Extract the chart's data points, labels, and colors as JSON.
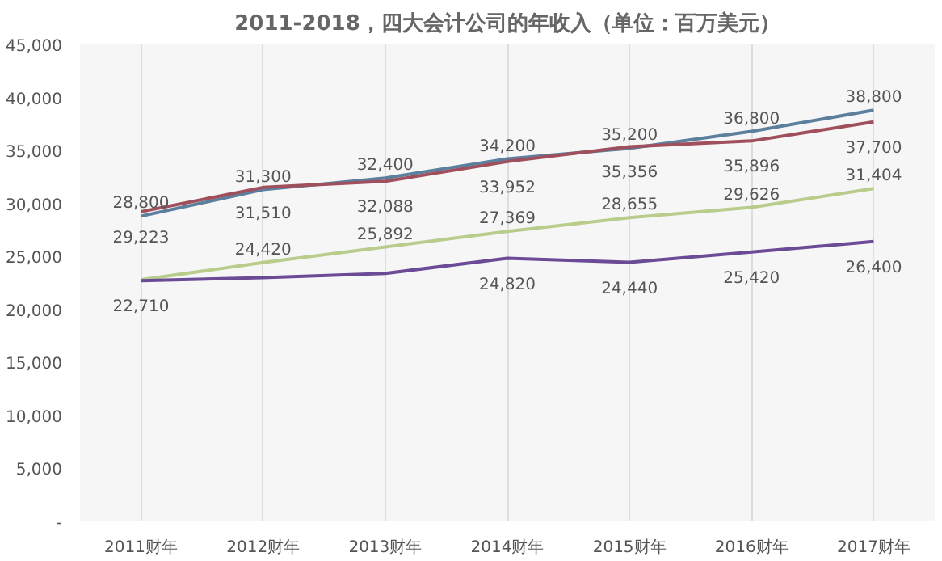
{
  "chart_data": {
    "type": "line",
    "title": "2011-2018，四大会计公司的年收入（单位：百万美元）",
    "categories": [
      "2011财年",
      "2012财年",
      "2013财年",
      "2014财年",
      "2015财年",
      "2016财年",
      "2017财年"
    ],
    "series": [
      {
        "color": "#5d7f9e",
        "values": [
          28800,
          31300,
          32400,
          34200,
          35200,
          36800,
          38800
        ],
        "value_labels": [
          "28,800",
          "31,300",
          "32,400",
          "34,200",
          "35,200",
          "36,800",
          "38,800"
        ]
      },
      {
        "color": "#a0505c",
        "values": [
          29223,
          31510,
          32088,
          33952,
          35356,
          35896,
          37700
        ],
        "value_labels": [
          "29,223",
          "31,510",
          "32,088",
          "33,952",
          "35,356",
          "35,896",
          "37,700"
        ]
      },
      {
        "color": "#b8cc8c",
        "values": [
          22800,
          24420,
          25892,
          27369,
          28655,
          29626,
          31404
        ],
        "value_labels": [
          null,
          "24,420",
          "25,892",
          "27,369",
          "28,655",
          "29,626",
          "31,404"
        ]
      },
      {
        "color": "#6b4a96",
        "values": [
          22710,
          23000,
          23400,
          24820,
          24440,
          25420,
          26400
        ],
        "value_labels": [
          "22,710",
          null,
          null,
          "24,820",
          "24,440",
          "25,420",
          "26,400"
        ]
      }
    ],
    "ylim": [
      0,
      45000
    ],
    "yticks": [
      {
        "value": 0,
        "label": "-"
      },
      {
        "value": 5000,
        "label": "5,000"
      },
      {
        "value": 10000,
        "label": "10,000"
      },
      {
        "value": 15000,
        "label": "15,000"
      },
      {
        "value": 20000,
        "label": "20,000"
      },
      {
        "value": 25000,
        "label": "25,000"
      },
      {
        "value": 30000,
        "label": "30,000"
      },
      {
        "value": 35000,
        "label": "35,000"
      },
      {
        "value": 40000,
        "label": "40,000"
      },
      {
        "value": 45000,
        "label": "45,000"
      }
    ],
    "grid": "x",
    "marker": "none",
    "line_style": "solid"
  }
}
